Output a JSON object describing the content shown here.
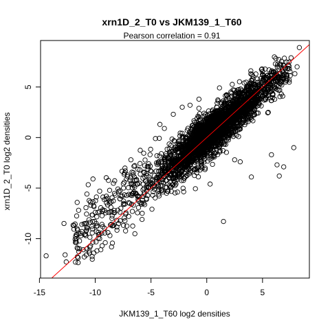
{
  "chart_data": {
    "type": "scatter",
    "title": "xrn1D_2_T0 vs JKM139_1_T60",
    "subtitle": "Pearson correlation =  0.91",
    "xlabel": "JKM139_1_T60 log2 densities",
    "ylabel": "xrn1D_2_T0 log2 densities",
    "xlim": [
      -14.9,
      9.2
    ],
    "ylim": [
      -13.9,
      9.6
    ],
    "x_ticks": [
      -15,
      -10,
      -5,
      0,
      5
    ],
    "y_ticks": [
      -10,
      -5,
      0,
      5
    ],
    "grid": false,
    "point_style": "open-circle",
    "colors": {
      "points": "#000000",
      "fit_line": "#ff0000",
      "frame": "#000000"
    },
    "fit_line": {
      "slope": 1.0,
      "intercept": 0.0
    },
    "outliers": [
      [
        -14.4,
        -11.7
      ],
      [
        -12.8,
        -8.5
      ],
      [
        -12.6,
        -12.3
      ],
      [
        -12.7,
        -11.6
      ],
      [
        -11.9,
        -8.7
      ],
      [
        -11.7,
        -9.6
      ],
      [
        -11.6,
        -11.8
      ],
      [
        -11.4,
        -11.0
      ],
      [
        -11.2,
        -8.6
      ],
      [
        -10.9,
        -8.5
      ],
      [
        -10.4,
        -6.7
      ],
      [
        -10.3,
        -8.8
      ],
      [
        -10.2,
        -4.1
      ],
      [
        -10.0,
        -7.4
      ],
      [
        -9.7,
        -9.6
      ],
      [
        -9.6,
        -10.0
      ],
      [
        -9.5,
        -11.1
      ],
      [
        -9.1,
        -10.4
      ],
      [
        -9.6,
        -5.3
      ],
      [
        -9.0,
        -5.8
      ],
      [
        -8.7,
        -6.5
      ],
      [
        -8.5,
        -8.0
      ],
      [
        -8.3,
        -7.2
      ],
      [
        -7.9,
        -8.5
      ],
      [
        -7.6,
        -5.8
      ],
      [
        -7.3,
        -3.3
      ],
      [
        -7.0,
        -7.8
      ],
      [
        -6.8,
        -2.2
      ],
      [
        -6.2,
        -4.6
      ],
      [
        -5.8,
        -8.1
      ],
      [
        -5.6,
        -5.4
      ],
      [
        -5.2,
        -2.6
      ],
      [
        -4.6,
        -0.1
      ],
      [
        -4.2,
        1.3
      ],
      [
        -3.8,
        0.9
      ],
      [
        -3.0,
        2.3
      ],
      [
        -2.2,
        3.0
      ],
      [
        -1.5,
        3.2
      ],
      [
        -0.7,
        3.8
      ],
      [
        0.5,
        2.6
      ],
      [
        1.2,
        -1.3
      ],
      [
        2.5,
        -2.2
      ],
      [
        3.0,
        -2.4
      ],
      [
        4.2,
        4.7
      ],
      [
        4.9,
        5.4
      ],
      [
        5.0,
        6.2
      ],
      [
        5.8,
        -1.7
      ],
      [
        6.0,
        6.5
      ],
      [
        6.3,
        -2.7
      ],
      [
        6.5,
        -3.8
      ],
      [
        6.9,
        -2.9
      ],
      [
        7.2,
        6.1
      ],
      [
        7.4,
        6.8
      ],
      [
        7.8,
        -1.0
      ],
      [
        8.1,
        7.0
      ],
      [
        8.3,
        8.9
      ],
      [
        0.3,
        -4.6
      ],
      [
        1.5,
        -8.3
      ],
      [
        4.0,
        -3.9
      ],
      [
        -2.0,
        -2.5
      ]
    ]
  }
}
